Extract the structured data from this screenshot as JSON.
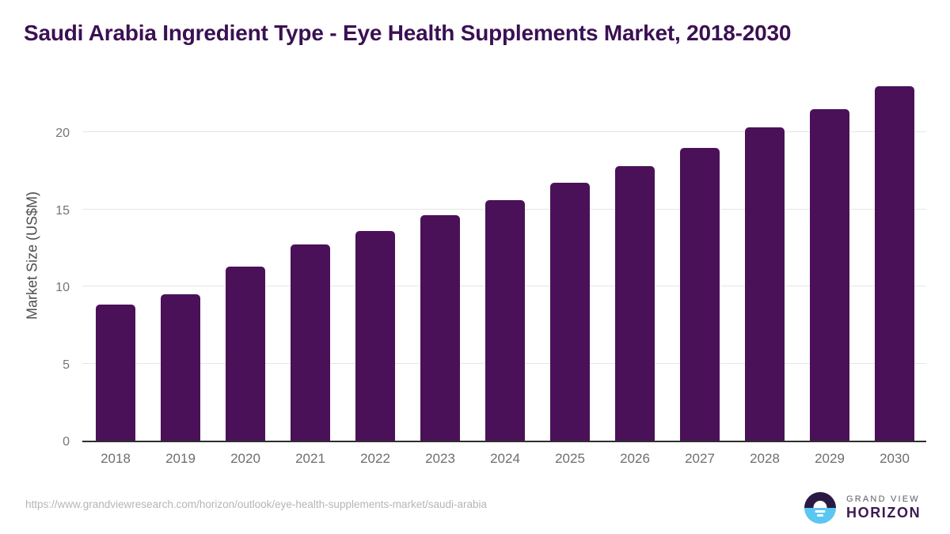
{
  "title": "Saudi Arabia Ingredient Type - Eye Health Supplements Market, 2018-2030",
  "chart_data": {
    "type": "bar",
    "title": "Saudi Arabia Ingredient Type - Eye Health Supplements Market, 2018-2030",
    "categories": [
      "2018",
      "2019",
      "2020",
      "2021",
      "2022",
      "2023",
      "2024",
      "2025",
      "2026",
      "2027",
      "2028",
      "2029",
      "2030"
    ],
    "values": [
      8.8,
      9.5,
      11.3,
      12.7,
      13.6,
      14.6,
      15.6,
      16.7,
      17.8,
      19.0,
      20.3,
      21.5,
      23.0
    ],
    "xlabel": "",
    "ylabel": "Market Size (US$M)",
    "ylim": [
      0,
      23.5
    ],
    "yticks": [
      0,
      5,
      10,
      15,
      20
    ],
    "grid": true,
    "legend": "none",
    "bar_color": "#4a1158"
  },
  "footer": {
    "source_url": "https://www.grandviewresearch.com/horizon/outlook/eye-health-supplements-market/saudi-arabia"
  },
  "logo": {
    "top_text": "GRAND VIEW",
    "bottom_text": "HORIZON"
  },
  "colors": {
    "title_color": "#3b1053",
    "bar_color": "#4a1158",
    "axis_color": "#2e2e2e",
    "grid_color": "#e6e6e6",
    "tick_color": "#757575",
    "xlabel_color": "#6e6e6e",
    "ylabel_color": "#4d4d4d",
    "footer_color": "#b5b5b5",
    "logo_dark": "#2a1a43",
    "logo_blue": "#5cc6f2",
    "logo_text_top": "#5c5c66",
    "logo_text_bottom": "#3b1a54"
  }
}
